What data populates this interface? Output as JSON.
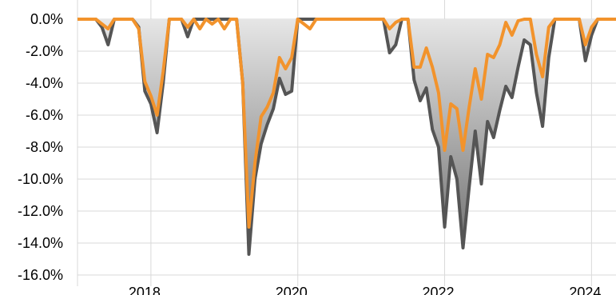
{
  "chart_data": {
    "type": "area",
    "title": "",
    "xlabel": "",
    "ylabel": "",
    "ylim": [
      -16,
      0
    ],
    "xlim": [
      "2017-01",
      "2024-05"
    ],
    "grid": true,
    "legend": "none",
    "y_ticks": [
      {
        "value": 0,
        "label": "0.0%"
      },
      {
        "value": -2,
        "label": "-2.0%"
      },
      {
        "value": -4,
        "label": "-4.0%"
      },
      {
        "value": -6,
        "label": "-6.0%"
      },
      {
        "value": -8,
        "label": "-8.0%"
      },
      {
        "value": -10,
        "label": "-10.0%"
      },
      {
        "value": -12,
        "label": "-12.0%"
      },
      {
        "value": -14,
        "label": "-14.0%"
      },
      {
        "value": -16,
        "label": "-16.0%"
      }
    ],
    "x_ticks": [
      {
        "value": "2018-01",
        "label": "2018"
      },
      {
        "value": "2020-01",
        "label": "2020"
      },
      {
        "value": "2022-01",
        "label": "2022"
      },
      {
        "value": "2024-01",
        "label": "2024"
      }
    ],
    "series": [
      {
        "color": "#555555",
        "style": "filled-area",
        "points": [
          [
            "2017-01",
            0
          ],
          [
            "2017-04",
            0
          ],
          [
            "2017-05",
            -0.5
          ],
          [
            "2017-06",
            -1.6
          ],
          [
            "2017-07",
            0
          ],
          [
            "2017-10",
            0
          ],
          [
            "2017-11",
            -0.5
          ],
          [
            "2017-12",
            -4.5
          ],
          [
            "2018-01",
            -5.3
          ],
          [
            "2018-02",
            -7.1
          ],
          [
            "2018-03",
            -4
          ],
          [
            "2018-04",
            0
          ],
          [
            "2018-06",
            0
          ],
          [
            "2018-07",
            -1.1
          ],
          [
            "2018-08",
            0
          ],
          [
            "2018-11",
            0
          ],
          [
            "2019-02",
            0
          ],
          [
            "2019-03",
            0
          ],
          [
            "2019-04",
            -4
          ],
          [
            "2019-05",
            -14.7
          ],
          [
            "2019-06",
            -10
          ],
          [
            "2019-07",
            -7.8
          ],
          [
            "2019-08",
            -6.6
          ],
          [
            "2019-09",
            -5.6
          ],
          [
            "2019-10",
            -3.7
          ],
          [
            "2019-11",
            -4.7
          ],
          [
            "2019-12",
            -4.5
          ],
          [
            "2020-01",
            0
          ],
          [
            "2020-03",
            0
          ],
          [
            "2021-03",
            0
          ],
          [
            "2021-04",
            -2.1
          ],
          [
            "2021-05",
            -1.6
          ],
          [
            "2021-06",
            0
          ],
          [
            "2021-07",
            0
          ],
          [
            "2021-08",
            -3.8
          ],
          [
            "2021-09",
            -5.1
          ],
          [
            "2021-10",
            -4.3
          ],
          [
            "2021-11",
            -6.9
          ],
          [
            "2021-12",
            -8
          ],
          [
            "2022-01",
            -13
          ],
          [
            "2022-02",
            -8.6
          ],
          [
            "2022-03",
            -10
          ],
          [
            "2022-04",
            -14.3
          ],
          [
            "2022-05",
            -10.5
          ],
          [
            "2022-06",
            -7
          ],
          [
            "2022-07",
            -10.3
          ],
          [
            "2022-08",
            -6.4
          ],
          [
            "2022-09",
            -7.4
          ],
          [
            "2022-10",
            -5.7
          ],
          [
            "2022-11",
            -4.2
          ],
          [
            "2022-12",
            -4.9
          ],
          [
            "2023-01",
            -3
          ],
          [
            "2023-02",
            -1.3
          ],
          [
            "2023-03",
            -1.6
          ],
          [
            "2023-04",
            -4.6
          ],
          [
            "2023-05",
            -6.7
          ],
          [
            "2023-06",
            -2.4
          ],
          [
            "2023-07",
            0
          ],
          [
            "2023-11",
            0
          ],
          [
            "2023-12",
            -2.6
          ],
          [
            "2024-01",
            -1
          ],
          [
            "2024-02",
            0
          ],
          [
            "2024-05",
            0
          ]
        ]
      },
      {
        "color": "#F2932C",
        "style": "line",
        "points": [
          [
            "2017-01",
            0
          ],
          [
            "2017-04",
            0
          ],
          [
            "2017-05",
            -0.3
          ],
          [
            "2017-06",
            -0.6
          ],
          [
            "2017-07",
            0
          ],
          [
            "2017-10",
            0
          ],
          [
            "2017-11",
            -0.6
          ],
          [
            "2017-12",
            -3.9
          ],
          [
            "2018-01",
            -4.8
          ],
          [
            "2018-02",
            -6
          ],
          [
            "2018-03",
            -3.3
          ],
          [
            "2018-04",
            0
          ],
          [
            "2018-06",
            0
          ],
          [
            "2018-07",
            -0.5
          ],
          [
            "2018-08",
            0
          ],
          [
            "2018-09",
            -0.6
          ],
          [
            "2018-10",
            0
          ],
          [
            "2018-11",
            -0.3
          ],
          [
            "2018-12",
            0
          ],
          [
            "2019-01",
            -0.6
          ],
          [
            "2019-02",
            0
          ],
          [
            "2019-03",
            0
          ],
          [
            "2019-04",
            -4
          ],
          [
            "2019-05",
            -13
          ],
          [
            "2019-06",
            -9
          ],
          [
            "2019-07",
            -6.1
          ],
          [
            "2019-08",
            -5.5
          ],
          [
            "2019-09",
            -4.6
          ],
          [
            "2019-10",
            -2.4
          ],
          [
            "2019-11",
            -3.1
          ],
          [
            "2019-12",
            -2.4
          ],
          [
            "2020-01",
            0
          ],
          [
            "2020-02",
            -0.3
          ],
          [
            "2020-03",
            -0.6
          ],
          [
            "2020-04",
            0
          ],
          [
            "2021-03",
            0
          ],
          [
            "2021-04",
            -0.6
          ],
          [
            "2021-05",
            -0.2
          ],
          [
            "2021-06",
            0
          ],
          [
            "2021-07",
            0
          ],
          [
            "2021-08",
            -3
          ],
          [
            "2021-09",
            -3
          ],
          [
            "2021-10",
            -1.8
          ],
          [
            "2021-11",
            -3
          ],
          [
            "2021-12",
            -4.6
          ],
          [
            "2022-01",
            -8.2
          ],
          [
            "2022-02",
            -5.3
          ],
          [
            "2022-03",
            -5.6
          ],
          [
            "2022-04",
            -8.2
          ],
          [
            "2022-05",
            -5.5
          ],
          [
            "2022-06",
            -3.1
          ],
          [
            "2022-07",
            -5
          ],
          [
            "2022-08",
            -2.2
          ],
          [
            "2022-09",
            -2.4
          ],
          [
            "2022-10",
            -1.6
          ],
          [
            "2022-11",
            -0.2
          ],
          [
            "2022-12",
            -1
          ],
          [
            "2023-01",
            -0.1
          ],
          [
            "2023-02",
            0
          ],
          [
            "2023-03",
            0
          ],
          [
            "2023-04",
            -2.2
          ],
          [
            "2023-05",
            -3.6
          ],
          [
            "2023-06",
            -0.5
          ],
          [
            "2023-07",
            0
          ],
          [
            "2023-11",
            0
          ],
          [
            "2023-12",
            -1.6
          ],
          [
            "2024-01",
            -0.5
          ],
          [
            "2024-02",
            0
          ],
          [
            "2024-05",
            0
          ]
        ]
      }
    ]
  }
}
